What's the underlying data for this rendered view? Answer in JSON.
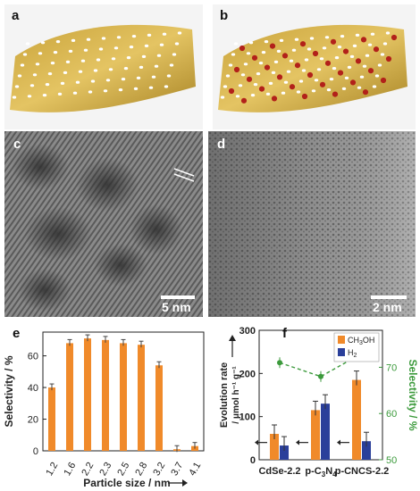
{
  "panels": {
    "a": {
      "label": "a"
    },
    "b": {
      "label": "b"
    },
    "c": {
      "label": "c",
      "scale_bar": "5 nm"
    },
    "d": {
      "label": "d",
      "scale_bar": "2 nm"
    },
    "e": {
      "label": "e"
    },
    "f": {
      "label": "f"
    }
  },
  "colors": {
    "sheet": "#d9b44a",
    "dot": "#ffffff",
    "particle": "#b2211a",
    "orange": "#f08a2a",
    "blue": "#2a3f9a",
    "green": "#3c9a3c"
  },
  "chart_data": [
    {
      "type": "bar",
      "panel": "e",
      "categories": [
        "1.2",
        "1.6",
        "2.2",
        "2.3",
        "2.5",
        "2.8",
        "3.2",
        "3.7",
        "4.1"
      ],
      "values": [
        40,
        68,
        71,
        70,
        68,
        67,
        54,
        1,
        3
      ],
      "xlabel": "Particle size / nm",
      "ylabel": "Selectivity / %",
      "ylim": [
        0,
        75
      ],
      "yticks": [
        0,
        20,
        40,
        60
      ]
    },
    {
      "type": "bar",
      "panel": "f",
      "categories": [
        "CdSe-2.2",
        "p-C3N4",
        "p-CNCS-2.2"
      ],
      "category_display": [
        {
          "pre": "CdSe-2.2",
          "sub": "",
          "post": ""
        },
        {
          "pre": "p-C",
          "sub": "3",
          "post": "N",
          "sub2": "4"
        },
        {
          "pre": "p-CNCS-2.2",
          "sub": "",
          "post": ""
        }
      ],
      "series": [
        {
          "name": "CH3OH",
          "name_pre": "CH",
          "name_sub": "3",
          "name_post": "OH",
          "values": [
            60,
            115,
            185
          ]
        },
        {
          "name": "H2",
          "name_pre": "H",
          "name_sub": "2",
          "name_post": "",
          "values": [
            33,
            130,
            43
          ]
        }
      ],
      "selectivity": {
        "values": [
          71,
          68,
          73
        ]
      },
      "ylabel_line1": "Evolution rate",
      "ylabel_line2": "/ μmol h⁻¹ g⁻¹",
      "ylim": [
        0,
        300
      ],
      "yticks": [
        0,
        100,
        200,
        300
      ],
      "y2label": "Selectivity / %",
      "y2lim": [
        50,
        78
      ],
      "y2ticks": [
        50,
        60,
        70
      ]
    }
  ]
}
